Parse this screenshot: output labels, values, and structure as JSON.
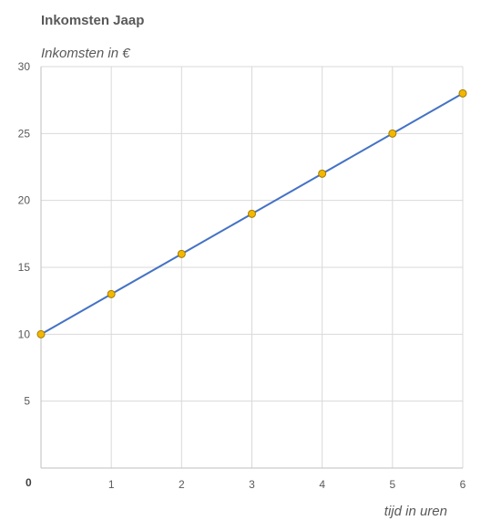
{
  "chart_data": {
    "type": "line",
    "title": "Inkomsten Jaap",
    "ylabel": "Inkomsten in €",
    "xlabel": "tijd in uren",
    "x": [
      0,
      1,
      2,
      3,
      4,
      5,
      6
    ],
    "series": [
      {
        "values": [
          10,
          13,
          16,
          19,
          22,
          25,
          28
        ]
      }
    ],
    "xlim": [
      0,
      6
    ],
    "ylim": [
      0,
      30
    ],
    "x_ticks": [
      "1",
      "2",
      "3",
      "4",
      "5",
      "6"
    ],
    "y_ticks": [
      "5",
      "10",
      "15",
      "20",
      "25",
      "30"
    ],
    "origin_label": "0",
    "grid": true,
    "legend": "none",
    "colors": {
      "line": "#4472c4",
      "marker_fill": "#f2b800",
      "marker_stroke": "#a57c00",
      "grid": "#d9d9d9",
      "axis": "#bfbfbf"
    }
  }
}
